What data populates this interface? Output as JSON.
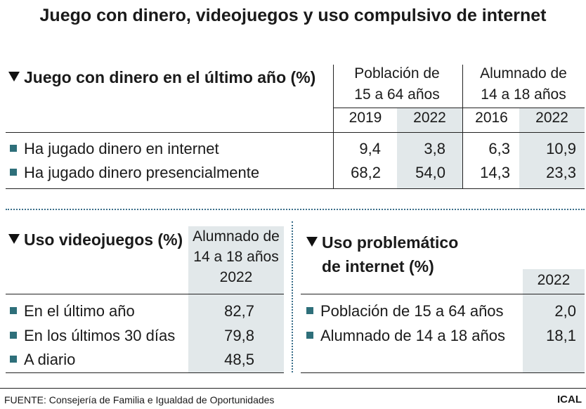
{
  "title": "Juego con dinero, videojuegos y uso compulsivo de internet",
  "section1": {
    "title": "Juego con dinero en el último año (%)",
    "groups": [
      {
        "header": [
          "Población de",
          "15 a 64 años"
        ],
        "years": [
          "2019",
          "2022"
        ]
      },
      {
        "header": [
          "Alumnado de",
          "14 a 18 años"
        ],
        "years": [
          "2016",
          "2022"
        ]
      }
    ],
    "rows": [
      {
        "label": "Ha jugado dinero en internet",
        "values": [
          "9,4",
          "3,8",
          "6,3",
          "10,9"
        ]
      },
      {
        "label": "Ha jugado dinero presencialmente",
        "values": [
          "68,2",
          "54,0",
          "14,3",
          "23,3"
        ]
      }
    ]
  },
  "section2": {
    "title": "Uso videojuegos (%)",
    "header": [
      "Alumnado de",
      "14 a 18 años",
      "2022"
    ],
    "rows": [
      {
        "label": "En el último año",
        "value": "82,7"
      },
      {
        "label": "En los últimos 30 días",
        "value": "79,8"
      },
      {
        "label": "A diario",
        "value": "48,5"
      }
    ]
  },
  "section3": {
    "title": [
      "Uso problemático",
      "de internet (%)"
    ],
    "year": "2022",
    "rows": [
      {
        "label": "Población de 15 a 64 años",
        "value": "2,0"
      },
      {
        "label": "Alumnado de 14 a 18 años",
        "value": "18,1"
      }
    ]
  },
  "source": "FUENTE: Consejería de Familia e Igualdad de Oportunidades",
  "logo": "ICAL",
  "colors": {
    "bullet": "#2e6f7a",
    "shade": "#e2e8ea",
    "dotted": "#3a6e8a"
  },
  "chart_data": [
    {
      "type": "table",
      "title": "Juego con dinero en el último año (%)",
      "columns": [
        "Población de 15 a 64 años 2019",
        "Población de 15 a 64 años 2022",
        "Alumnado de 14 a 18 años 2016",
        "Alumnado de 14 a 18 años 2022"
      ],
      "rows": [
        {
          "label": "Ha jugado dinero en internet",
          "values": [
            9.4,
            3.8,
            6.3,
            10.9
          ]
        },
        {
          "label": "Ha jugado dinero presencialmente",
          "values": [
            68.2,
            54.0,
            14.3,
            23.3
          ]
        }
      ]
    },
    {
      "type": "table",
      "title": "Uso videojuegos (%)",
      "columns": [
        "Alumnado de 14 a 18 años 2022"
      ],
      "rows": [
        {
          "label": "En el último año",
          "values": [
            82.7
          ]
        },
        {
          "label": "En los últimos 30 días",
          "values": [
            79.8
          ]
        },
        {
          "label": "A diario",
          "values": [
            48.5
          ]
        }
      ]
    },
    {
      "type": "table",
      "title": "Uso problemático de internet (%)",
      "columns": [
        "2022"
      ],
      "rows": [
        {
          "label": "Población de 15 a 64 años",
          "values": [
            2.0
          ]
        },
        {
          "label": "Alumnado de 14 a 18 años",
          "values": [
            18.1
          ]
        }
      ]
    }
  ]
}
